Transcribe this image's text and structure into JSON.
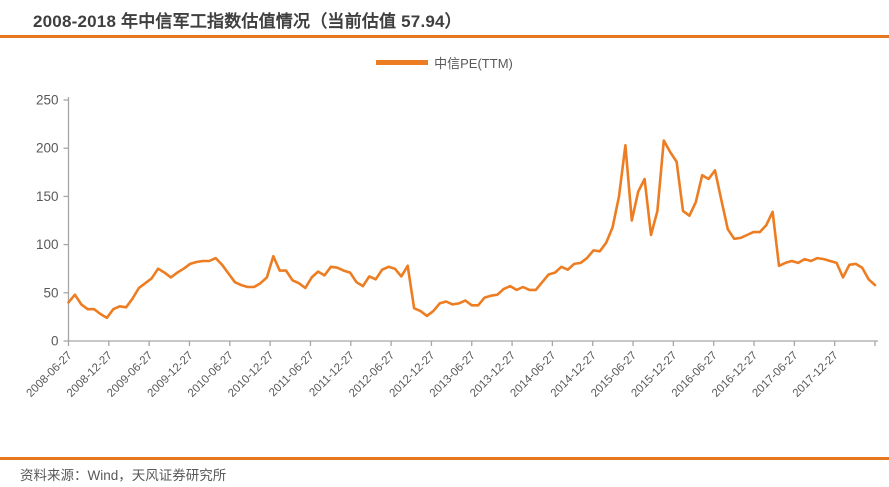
{
  "header": {
    "title": "2008-2018 年中信军工指数估值情况（当前估值 57.94）",
    "current_pe": 57.94,
    "accent_color": "#E87722"
  },
  "legend": {
    "label": "中信PE(TTM)",
    "swatch_color": "#ED7D22",
    "position": "top-center"
  },
  "source": {
    "text": "资料来源：Wind，天风证券研究所"
  },
  "chart_data": {
    "type": "line",
    "title": "2008-2018 年中信军工指数估值情况（当前估值 57.94）",
    "xlabel": "",
    "ylabel": "",
    "grid": false,
    "axis_color": "#A6A6A6",
    "label_color": "#595959",
    "y_axis": {
      "min": 0,
      "max": 250,
      "step": 50,
      "ticks": [
        0,
        50,
        100,
        150,
        200,
        250
      ]
    },
    "x_tick_labels": [
      "2008-06-27",
      "2008-12-27",
      "2009-06-27",
      "2009-12-27",
      "2010-06-27",
      "2010-12-27",
      "2011-06-27",
      "2011-12-27",
      "2012-06-27",
      "2012-12-27",
      "2013-06-27",
      "2013-12-27",
      "2014-06-27",
      "2014-12-27",
      "2015-06-27",
      "2015-12-27",
      "2016-06-27",
      "2016-12-27",
      "2017-06-27",
      "2017-12-27"
    ],
    "series": [
      {
        "name": "中信PE(TTM)",
        "color": "#ED7D22",
        "points": [
          {
            "date": "2008-06",
            "pe": 40
          },
          {
            "date": "2008-07",
            "pe": 48
          },
          {
            "date": "2008-08",
            "pe": 38
          },
          {
            "date": "2008-09",
            "pe": 33
          },
          {
            "date": "2008-10",
            "pe": 33
          },
          {
            "date": "2008-11",
            "pe": 28
          },
          {
            "date": "2008-12",
            "pe": 24
          },
          {
            "date": "2009-01",
            "pe": 33
          },
          {
            "date": "2009-02",
            "pe": 36
          },
          {
            "date": "2009-03",
            "pe": 35
          },
          {
            "date": "2009-04",
            "pe": 44
          },
          {
            "date": "2009-05",
            "pe": 55
          },
          {
            "date": "2009-06",
            "pe": 60
          },
          {
            "date": "2009-07",
            "pe": 65
          },
          {
            "date": "2009-08",
            "pe": 75
          },
          {
            "date": "2009-09",
            "pe": 71
          },
          {
            "date": "2009-10",
            "pe": 66
          },
          {
            "date": "2009-11",
            "pe": 71
          },
          {
            "date": "2009-12",
            "pe": 75
          },
          {
            "date": "2010-01",
            "pe": 80
          },
          {
            "date": "2010-02",
            "pe": 82
          },
          {
            "date": "2010-03",
            "pe": 83
          },
          {
            "date": "2010-04",
            "pe": 83
          },
          {
            "date": "2010-05",
            "pe": 86
          },
          {
            "date": "2010-06",
            "pe": 79
          },
          {
            "date": "2010-07",
            "pe": 70
          },
          {
            "date": "2010-08",
            "pe": 61
          },
          {
            "date": "2010-09",
            "pe": 58
          },
          {
            "date": "2010-10",
            "pe": 56
          },
          {
            "date": "2010-11",
            "pe": 56
          },
          {
            "date": "2010-12",
            "pe": 60
          },
          {
            "date": "2011-01",
            "pe": 66
          },
          {
            "date": "2011-02",
            "pe": 88
          },
          {
            "date": "2011-03",
            "pe": 73
          },
          {
            "date": "2011-04",
            "pe": 73
          },
          {
            "date": "2011-05",
            "pe": 63
          },
          {
            "date": "2011-06",
            "pe": 60
          },
          {
            "date": "2011-07",
            "pe": 55
          },
          {
            "date": "2011-08",
            "pe": 66
          },
          {
            "date": "2011-09",
            "pe": 72
          },
          {
            "date": "2011-10",
            "pe": 68
          },
          {
            "date": "2011-11",
            "pe": 77
          },
          {
            "date": "2011-12",
            "pe": 76
          },
          {
            "date": "2012-01",
            "pe": 73
          },
          {
            "date": "2012-02",
            "pe": 71
          },
          {
            "date": "2012-03",
            "pe": 61
          },
          {
            "date": "2012-04",
            "pe": 57
          },
          {
            "date": "2012-05",
            "pe": 67
          },
          {
            "date": "2012-06",
            "pe": 64
          },
          {
            "date": "2012-07",
            "pe": 74
          },
          {
            "date": "2012-08",
            "pe": 77
          },
          {
            "date": "2012-09",
            "pe": 75
          },
          {
            "date": "2012-10",
            "pe": 67
          },
          {
            "date": "2012-11",
            "pe": 78
          },
          {
            "date": "2012-12",
            "pe": 34
          },
          {
            "date": "2013-01",
            "pe": 31
          },
          {
            "date": "2013-02",
            "pe": 26
          },
          {
            "date": "2013-03",
            "pe": 31
          },
          {
            "date": "2013-04",
            "pe": 39
          },
          {
            "date": "2013-05",
            "pe": 41
          },
          {
            "date": "2013-06",
            "pe": 38
          },
          {
            "date": "2013-07",
            "pe": 39
          },
          {
            "date": "2013-08",
            "pe": 42
          },
          {
            "date": "2013-09",
            "pe": 37
          },
          {
            "date": "2013-10",
            "pe": 37
          },
          {
            "date": "2013-11",
            "pe": 45
          },
          {
            "date": "2013-12",
            "pe": 47
          },
          {
            "date": "2014-01",
            "pe": 48
          },
          {
            "date": "2014-02",
            "pe": 54
          },
          {
            "date": "2014-03",
            "pe": 57
          },
          {
            "date": "2014-04",
            "pe": 53
          },
          {
            "date": "2014-05",
            "pe": 56
          },
          {
            "date": "2014-06",
            "pe": 53
          },
          {
            "date": "2014-07",
            "pe": 53
          },
          {
            "date": "2014-08",
            "pe": 61
          },
          {
            "date": "2014-09",
            "pe": 69
          },
          {
            "date": "2014-10",
            "pe": 71
          },
          {
            "date": "2014-11",
            "pe": 77
          },
          {
            "date": "2014-12",
            "pe": 74
          },
          {
            "date": "2015-01",
            "pe": 80
          },
          {
            "date": "2015-02",
            "pe": 81
          },
          {
            "date": "2015-03",
            "pe": 86
          },
          {
            "date": "2015-04",
            "pe": 94
          },
          {
            "date": "2015-05",
            "pe": 93
          },
          {
            "date": "2015-06",
            "pe": 102
          },
          {
            "date": "2015-07",
            "pe": 118
          },
          {
            "date": "2015-08",
            "pe": 150
          },
          {
            "date": "2015-09",
            "pe": 203
          },
          {
            "date": "2015-10",
            "pe": 125
          },
          {
            "date": "2015-11",
            "pe": 155
          },
          {
            "date": "2015-12",
            "pe": 168
          },
          {
            "date": "2016-01",
            "pe": 110
          },
          {
            "date": "2016-02",
            "pe": 135
          },
          {
            "date": "2016-03",
            "pe": 208
          },
          {
            "date": "2016-04",
            "pe": 196
          },
          {
            "date": "2016-05",
            "pe": 186
          },
          {
            "date": "2016-06",
            "pe": 135
          },
          {
            "date": "2016-07",
            "pe": 130
          },
          {
            "date": "2016-08",
            "pe": 144
          },
          {
            "date": "2016-09",
            "pe": 172
          },
          {
            "date": "2016-10",
            "pe": 168
          },
          {
            "date": "2016-11",
            "pe": 177
          },
          {
            "date": "2016-12",
            "pe": 146
          },
          {
            "date": "2017-01",
            "pe": 116
          },
          {
            "date": "2017-02",
            "pe": 106
          },
          {
            "date": "2017-03",
            "pe": 107
          },
          {
            "date": "2017-04",
            "pe": 110
          },
          {
            "date": "2017-05",
            "pe": 113
          },
          {
            "date": "2017-06",
            "pe": 113
          },
          {
            "date": "2017-07",
            "pe": 120
          },
          {
            "date": "2017-08",
            "pe": 134
          },
          {
            "date": "2017-09",
            "pe": 78
          },
          {
            "date": "2017-10",
            "pe": 81
          },
          {
            "date": "2017-11",
            "pe": 83
          },
          {
            "date": "2017-12",
            "pe": 81
          },
          {
            "date": "2018-01",
            "pe": 85
          },
          {
            "date": "2018-02",
            "pe": 83
          },
          {
            "date": "2018-03",
            "pe": 86
          },
          {
            "date": "2018-04",
            "pe": 85
          },
          {
            "date": "2018-05",
            "pe": 83
          },
          {
            "date": "2018-06",
            "pe": 81
          },
          {
            "date": "2018-07",
            "pe": 66
          },
          {
            "date": "2018-08",
            "pe": 79
          },
          {
            "date": "2018-09",
            "pe": 80
          },
          {
            "date": "2018-10",
            "pe": 76
          },
          {
            "date": "2018-11",
            "pe": 64
          },
          {
            "date": "2018-12",
            "pe": 57.94
          }
        ]
      }
    ]
  }
}
